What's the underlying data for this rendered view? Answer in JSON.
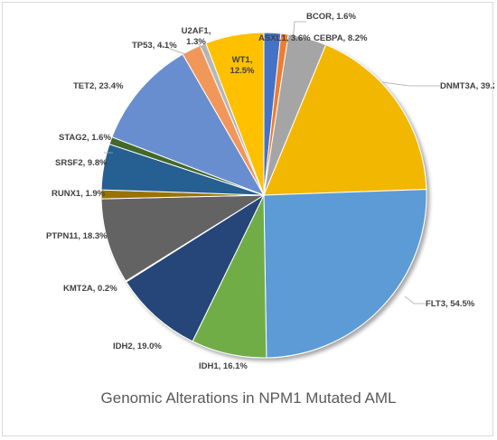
{
  "chart_data": {
    "type": "pie",
    "title": "Genomic Alterations in NPM1 Mutated AML",
    "slices": [
      {
        "label": "ASXL1",
        "value": 3.6,
        "color": "#4472c4"
      },
      {
        "label": "BCOR",
        "value": 1.6,
        "color": "#ed7d31"
      },
      {
        "label": "CEBPA",
        "value": 8.2,
        "color": "#a5a5a5"
      },
      {
        "label": "DNMT3A",
        "value": 39.2,
        "color": "#f2b700"
      },
      {
        "label": "FLT3",
        "value": 54.5,
        "color": "#5b9bd5"
      },
      {
        "label": "IDH1",
        "value": 16.1,
        "color": "#70ad47"
      },
      {
        "label": "IDH2",
        "value": 19.0,
        "color": "#264478"
      },
      {
        "label": "KMT2A",
        "value": 0.2,
        "color": "#9e480e"
      },
      {
        "label": "PTPN11",
        "value": 18.3,
        "color": "#636363"
      },
      {
        "label": "RUNX1",
        "value": 1.9,
        "color": "#997300"
      },
      {
        "label": "SRSF2",
        "value": 9.8,
        "color": "#255e91"
      },
      {
        "label": "STAG2",
        "value": 1.6,
        "color": "#43682b"
      },
      {
        "label": "TET2",
        "value": 23.4,
        "color": "#698ed0"
      },
      {
        "label": "TP53",
        "value": 4.1,
        "color": "#f1975a"
      },
      {
        "label": "U2AF1",
        "value": 1.3,
        "color": "#b7b7b7"
      },
      {
        "label": "WT1",
        "value": 12.5,
        "color": "#ffc000"
      }
    ],
    "display_labels": [
      "ASXL1, 3.6%",
      "BCOR, 1.6%",
      "CEBPA, 8.2%",
      "DNMT3A, 39.2%",
      "FLT3, 54.5%",
      "IDH1, 16.1%",
      "IDH2, 19.0%",
      "KMT2A, 0.2%",
      "PTPN11, 18.3%",
      "RUNX1, 1.9%",
      "SRSF2, 9.8%",
      "STAG2, 1.6%",
      "TET2, 23.4%",
      "TP53, 4.1%",
      "U2AF1,\n1.3%",
      "WT1,\n12.5%"
    ],
    "legend": "none",
    "grid": false
  }
}
